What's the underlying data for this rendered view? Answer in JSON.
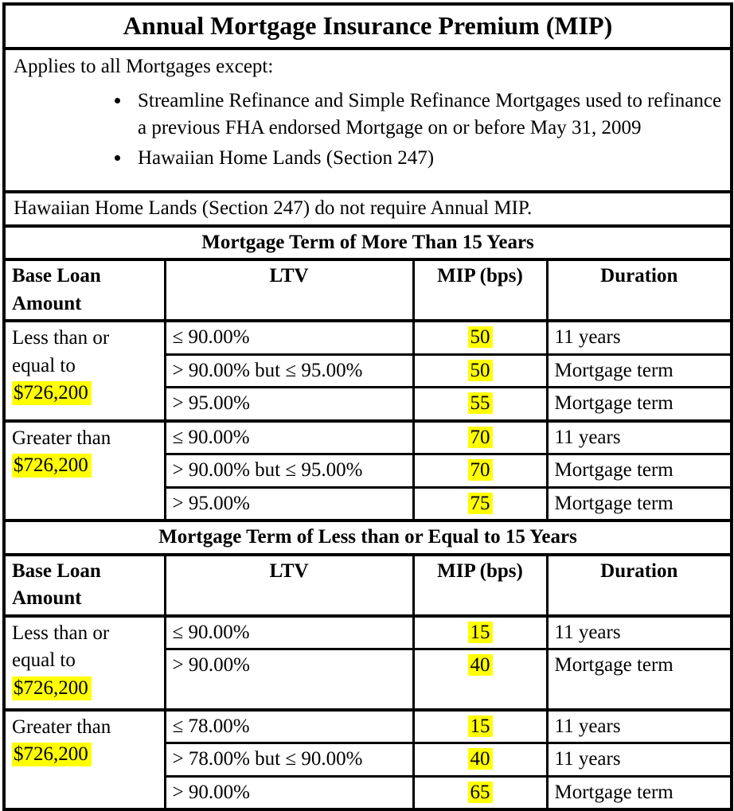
{
  "title": "Annual Mortgage Insurance Premium (MIP)",
  "exceptions": {
    "intro": "Applies to all Mortgages except:",
    "bullets": [
      "Streamline Refinance and Simple Refinance Mortgages used to refinance a previous FHA endorsed Mortgage on or before May 31, 2009",
      "Hawaiian Home Lands (Section 247)"
    ]
  },
  "note": "Hawaiian Home Lands (Section 247) do not require Annual MIP.",
  "columns": {
    "base": "Base Loan Amount",
    "ltv": "LTV",
    "mip": "MIP (bps)",
    "duration": "Duration"
  },
  "highlight_color": "#ffff00",
  "sections": [
    {
      "header": "Mortgage Term of More Than 15 Years",
      "groups": [
        {
          "base_label": "Less than or equal to",
          "base_amount": "$726,200",
          "rows": [
            {
              "ltv": "≤ 90.00%",
              "mip": "50",
              "duration": "11 years"
            },
            {
              "ltv": "> 90.00% but ≤ 95.00%",
              "mip": "50",
              "duration": "Mortgage term"
            },
            {
              "ltv": "> 95.00%",
              "mip": "55",
              "duration": "Mortgage term"
            }
          ]
        },
        {
          "base_label": "Greater than",
          "base_amount": "$726,200",
          "rows": [
            {
              "ltv": "≤ 90.00%",
              "mip": "70",
              "duration": "11 years"
            },
            {
              "ltv": "> 90.00% but ≤ 95.00%",
              "mip": "70",
              "duration": "Mortgage term"
            },
            {
              "ltv": "> 95.00%",
              "mip": "75",
              "duration": "Mortgage term"
            }
          ]
        }
      ]
    },
    {
      "header": "Mortgage Term of Less than or Equal to 15 Years",
      "groups": [
        {
          "base_label": "Less than or equal to",
          "base_amount": "$726,200",
          "rows": [
            {
              "ltv": "≤ 90.00%",
              "mip": "15",
              "duration": "11 years"
            },
            {
              "ltv": "> 90.00%",
              "mip": "40",
              "duration": "Mortgage term"
            }
          ]
        },
        {
          "base_label": "Greater than",
          "base_amount": "$726,200",
          "rows": [
            {
              "ltv": "≤ 78.00%",
              "mip": "15",
              "duration": "11 years"
            },
            {
              "ltv": "> 78.00% but ≤ 90.00%",
              "mip": "40",
              "duration": "11 years"
            },
            {
              "ltv": "> 90.00%",
              "mip": "65",
              "duration": "Mortgage term"
            }
          ]
        }
      ]
    }
  ]
}
